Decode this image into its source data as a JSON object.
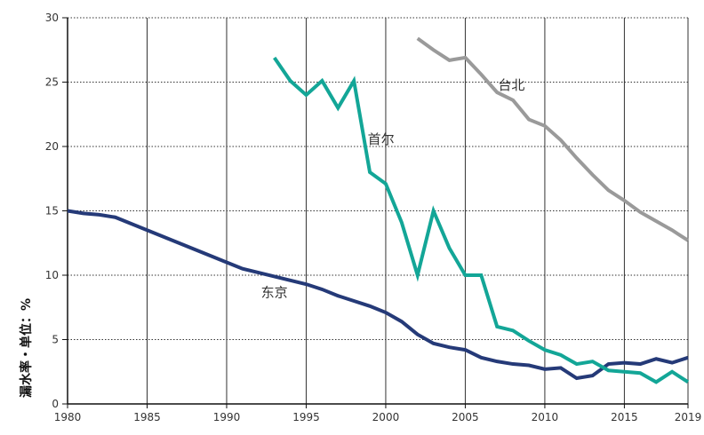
{
  "chart_data": {
    "type": "line",
    "title": "",
    "xlabel": "",
    "ylabel": "漏水率・单位：%",
    "xlim": [
      1980,
      2019
    ],
    "ylim": [
      0,
      30
    ],
    "x_ticks": [
      1980,
      1985,
      1990,
      1995,
      2000,
      2005,
      2010,
      2015,
      2019
    ],
    "y_ticks": [
      0,
      5,
      10,
      15,
      20,
      25,
      30
    ],
    "grid": {
      "vertical": "solid",
      "horizontal": "dotted"
    },
    "series": [
      {
        "name": "东京",
        "color": "#253a78",
        "points": [
          [
            1980,
            15.0
          ],
          [
            1981,
            14.8
          ],
          [
            1982,
            14.7
          ],
          [
            1983,
            14.5
          ],
          [
            1984,
            14.0
          ],
          [
            1985,
            13.5
          ],
          [
            1986,
            13.0
          ],
          [
            1987,
            12.5
          ],
          [
            1988,
            12.0
          ],
          [
            1989,
            11.5
          ],
          [
            1990,
            11.0
          ],
          [
            1991,
            10.5
          ],
          [
            1992,
            10.2
          ],
          [
            1993,
            9.9
          ],
          [
            1994,
            9.6
          ],
          [
            1995,
            9.3
          ],
          [
            1996,
            8.9
          ],
          [
            1997,
            8.4
          ],
          [
            1998,
            8.0
          ],
          [
            1999,
            7.6
          ],
          [
            2000,
            7.1
          ],
          [
            2001,
            6.4
          ],
          [
            2002,
            5.4
          ],
          [
            2003,
            4.7
          ],
          [
            2004,
            4.4
          ],
          [
            2005,
            4.2
          ],
          [
            2006,
            3.6
          ],
          [
            2007,
            3.3
          ],
          [
            2008,
            3.1
          ],
          [
            2009,
            3.0
          ],
          [
            2010,
            2.7
          ],
          [
            2011,
            2.8
          ],
          [
            2012,
            2.0
          ],
          [
            2013,
            2.2
          ],
          [
            2014,
            3.1
          ],
          [
            2015,
            3.2
          ],
          [
            2016,
            3.1
          ],
          [
            2017,
            3.5
          ],
          [
            2018,
            3.2
          ],
          [
            2019,
            3.6
          ]
        ]
      },
      {
        "name": "首尔",
        "color": "#13a697",
        "points": [
          [
            1993,
            26.9
          ],
          [
            1994,
            25.1
          ],
          [
            1995,
            24.0
          ],
          [
            1996,
            25.1
          ],
          [
            1997,
            23.0
          ],
          [
            1998,
            25.1
          ],
          [
            1999,
            18.0
          ],
          [
            2000,
            17.1
          ],
          [
            2001,
            14.1
          ],
          [
            2002,
            10.0
          ],
          [
            2003,
            15.0
          ],
          [
            2004,
            12.1
          ],
          [
            2005,
            10.0
          ],
          [
            2006,
            10.0
          ],
          [
            2007,
            6.0
          ],
          [
            2008,
            5.7
          ],
          [
            2009,
            4.9
          ],
          [
            2010,
            4.2
          ],
          [
            2011,
            3.8
          ],
          [
            2012,
            3.1
          ],
          [
            2013,
            3.3
          ],
          [
            2014,
            2.6
          ],
          [
            2015,
            2.5
          ],
          [
            2016,
            2.4
          ],
          [
            2017,
            1.7
          ],
          [
            2018,
            2.5
          ],
          [
            2019,
            1.7
          ]
        ]
      },
      {
        "name": "台北",
        "color": "#9a9a9a",
        "points": [
          [
            2002,
            28.4
          ],
          [
            2003,
            27.5
          ],
          [
            2004,
            26.7
          ],
          [
            2005,
            26.9
          ],
          [
            2006,
            25.6
          ],
          [
            2007,
            24.2
          ],
          [
            2008,
            23.6
          ],
          [
            2009,
            22.1
          ],
          [
            2010,
            21.6
          ],
          [
            2011,
            20.5
          ],
          [
            2012,
            19.1
          ],
          [
            2013,
            17.8
          ],
          [
            2014,
            16.6
          ],
          [
            2015,
            15.8
          ],
          [
            2016,
            14.9
          ],
          [
            2017,
            14.2
          ],
          [
            2018,
            13.5
          ],
          [
            2019,
            12.7
          ]
        ]
      }
    ]
  }
}
